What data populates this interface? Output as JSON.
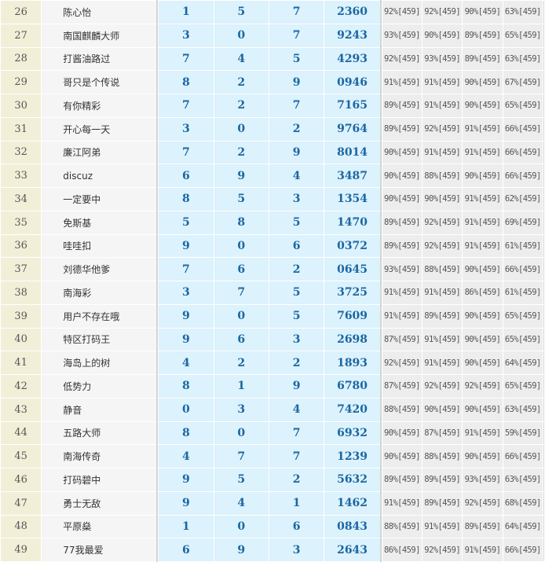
{
  "colors": {
    "rank_bg": "#f2efd9",
    "name_bg": "#f5f5f5",
    "digit_bg": "#dcf2fd",
    "digit_text": "#1b67a2",
    "pct_bg": "#ededed"
  },
  "rows": [
    {
      "rank": "26",
      "name": "陈心怡",
      "d": [
        "1",
        "5",
        "7"
      ],
      "num": "2360",
      "pct": [
        "92%[459]",
        "92%[459]",
        "90%[459]",
        "63%[459]"
      ]
    },
    {
      "rank": "27",
      "name": "南国麒麟大师",
      "d": [
        "3",
        "0",
        "7"
      ],
      "num": "9243",
      "pct": [
        "93%[459]",
        "90%[459]",
        "89%[459]",
        "65%[459]"
      ]
    },
    {
      "rank": "28",
      "name": "打酱油路过",
      "d": [
        "7",
        "4",
        "5"
      ],
      "num": "4293",
      "pct": [
        "92%[459]",
        "93%[459]",
        "89%[459]",
        "63%[459]"
      ]
    },
    {
      "rank": "29",
      "name": "哥只是个传说",
      "d": [
        "8",
        "2",
        "9"
      ],
      "num": "0946",
      "pct": [
        "91%[459]",
        "91%[459]",
        "90%[459]",
        "67%[459]"
      ]
    },
    {
      "rank": "30",
      "name": "有你精彩",
      "d": [
        "7",
        "2",
        "7"
      ],
      "num": "7165",
      "pct": [
        "89%[459]",
        "91%[459]",
        "90%[459]",
        "65%[459]"
      ]
    },
    {
      "rank": "31",
      "name": "开心每一天",
      "d": [
        "3",
        "0",
        "2"
      ],
      "num": "9764",
      "pct": [
        "89%[459]",
        "92%[459]",
        "91%[459]",
        "66%[459]"
      ]
    },
    {
      "rank": "32",
      "name": "廉江阿弟",
      "d": [
        "7",
        "2",
        "9"
      ],
      "num": "8014",
      "pct": [
        "90%[459]",
        "91%[459]",
        "91%[459]",
        "66%[459]"
      ]
    },
    {
      "rank": "33",
      "name": "discuz",
      "d": [
        "6",
        "9",
        "4"
      ],
      "num": "3487",
      "pct": [
        "90%[459]",
        "88%[459]",
        "90%[459]",
        "66%[459]"
      ]
    },
    {
      "rank": "34",
      "name": "一定要中",
      "d": [
        "8",
        "5",
        "3"
      ],
      "num": "1354",
      "pct": [
        "90%[459]",
        "90%[459]",
        "91%[459]",
        "62%[459]"
      ]
    },
    {
      "rank": "35",
      "name": "免斯基",
      "d": [
        "5",
        "8",
        "5"
      ],
      "num": "1470",
      "pct": [
        "89%[459]",
        "92%[459]",
        "91%[459]",
        "69%[459]"
      ]
    },
    {
      "rank": "36",
      "name": "哇哇扣",
      "d": [
        "9",
        "0",
        "6"
      ],
      "num": "0372",
      "pct": [
        "89%[459]",
        "92%[459]",
        "91%[459]",
        "61%[459]"
      ]
    },
    {
      "rank": "37",
      "name": "刘德华他爹",
      "d": [
        "7",
        "6",
        "2"
      ],
      "num": "0645",
      "pct": [
        "93%[459]",
        "88%[459]",
        "90%[459]",
        "66%[459]"
      ]
    },
    {
      "rank": "38",
      "name": "南海彩",
      "d": [
        "3",
        "7",
        "5"
      ],
      "num": "3725",
      "pct": [
        "91%[459]",
        "91%[459]",
        "86%[459]",
        "61%[459]"
      ]
    },
    {
      "rank": "39",
      "name": "用户不存在哦",
      "d": [
        "9",
        "0",
        "5"
      ],
      "num": "7609",
      "pct": [
        "91%[459]",
        "89%[459]",
        "90%[459]",
        "65%[459]"
      ]
    },
    {
      "rank": "40",
      "name": "特区打码王",
      "d": [
        "9",
        "6",
        "3"
      ],
      "num": "2698",
      "pct": [
        "87%[459]",
        "91%[459]",
        "90%[459]",
        "65%[459]"
      ]
    },
    {
      "rank": "41",
      "name": "海岛上的树",
      "d": [
        "4",
        "2",
        "2"
      ],
      "num": "1893",
      "pct": [
        "92%[459]",
        "91%[459]",
        "90%[459]",
        "64%[459]"
      ]
    },
    {
      "rank": "42",
      "name": "低势力",
      "d": [
        "8",
        "1",
        "9"
      ],
      "num": "6780",
      "pct": [
        "87%[459]",
        "92%[459]",
        "92%[459]",
        "65%[459]"
      ]
    },
    {
      "rank": "43",
      "name": "静音",
      "d": [
        "0",
        "3",
        "4"
      ],
      "num": "7420",
      "pct": [
        "88%[459]",
        "90%[459]",
        "90%[459]",
        "63%[459]"
      ]
    },
    {
      "rank": "44",
      "name": "五路大师",
      "d": [
        "8",
        "0",
        "7"
      ],
      "num": "6932",
      "pct": [
        "90%[459]",
        "87%[459]",
        "91%[459]",
        "59%[459]"
      ]
    },
    {
      "rank": "45",
      "name": "南海传奇",
      "d": [
        "4",
        "7",
        "7"
      ],
      "num": "1239",
      "pct": [
        "90%[459]",
        "88%[459]",
        "90%[459]",
        "66%[459]"
      ]
    },
    {
      "rank": "46",
      "name": "打码碧中",
      "d": [
        "9",
        "5",
        "2"
      ],
      "num": "5632",
      "pct": [
        "89%[459]",
        "89%[459]",
        "93%[459]",
        "63%[459]"
      ]
    },
    {
      "rank": "47",
      "name": "勇士无敌",
      "d": [
        "9",
        "4",
        "1"
      ],
      "num": "1462",
      "pct": [
        "91%[459]",
        "89%[459]",
        "92%[459]",
        "68%[459]"
      ]
    },
    {
      "rank": "48",
      "name": "平原燊",
      "d": [
        "1",
        "0",
        "6"
      ],
      "num": "0843",
      "pct": [
        "88%[459]",
        "91%[459]",
        "89%[459]",
        "64%[459]"
      ]
    },
    {
      "rank": "49",
      "name": "77我最爱",
      "d": [
        "6",
        "9",
        "3"
      ],
      "num": "2643",
      "pct": [
        "86%[459]",
        "92%[459]",
        "91%[459]",
        "66%[459]"
      ]
    }
  ]
}
